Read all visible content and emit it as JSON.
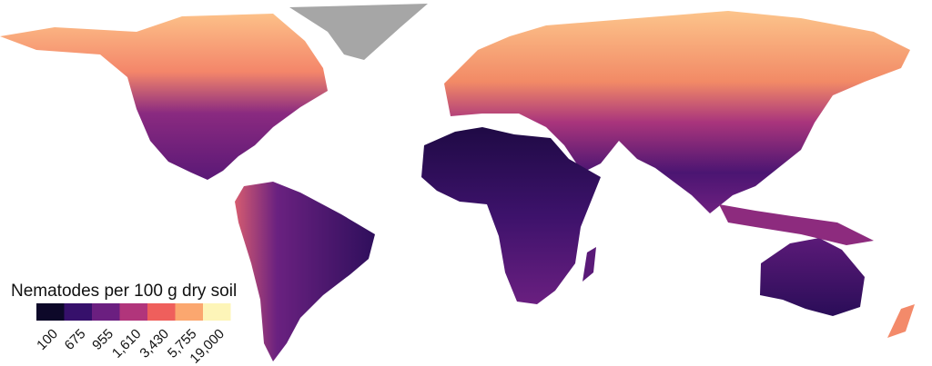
{
  "legend": {
    "title": "Nematodes per 100 g dry soil",
    "bins": [
      {
        "label": "100",
        "color": "#0d0829"
      },
      {
        "label": "675",
        "color": "#36106b"
      },
      {
        "label": "955",
        "color": "#6b1f80"
      },
      {
        "label": "1,610",
        "color": "#b1357b"
      },
      {
        "label": "3,430",
        "color": "#ef5f5c"
      },
      {
        "label": "5,755",
        "color": "#fba76f"
      },
      {
        "label": "19,000",
        "color": "#fdf5b8"
      }
    ]
  }
}
